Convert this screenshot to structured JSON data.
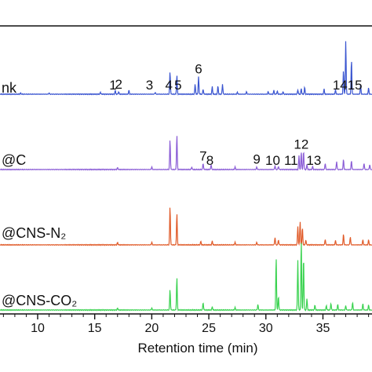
{
  "chart_data": {
    "type": "line",
    "xlabel": "Retention time (min)",
    "ylabel": "",
    "xlim": [
      6.7,
      39.3
    ],
    "x_ticks": [
      10,
      15,
      20,
      25,
      30,
      35
    ],
    "grid": false,
    "series": [
      {
        "name": "nk",
        "color": "#3a55d0",
        "peaks": [
          [
            8.5,
            0.02
          ],
          [
            11,
            0.02
          ],
          [
            15.5,
            0.03
          ],
          [
            16.8,
            0.06
          ],
          [
            17.1,
            0.04
          ],
          [
            18.0,
            0.06
          ],
          [
            20.3,
            0.03
          ],
          [
            21.6,
            0.36
          ],
          [
            22.2,
            0.3
          ],
          [
            23.8,
            0.16
          ],
          [
            24.1,
            0.28
          ],
          [
            24.5,
            0.08
          ],
          [
            25.3,
            0.12
          ],
          [
            25.8,
            0.13
          ],
          [
            26.2,
            0.16
          ],
          [
            27.5,
            0.03
          ],
          [
            28.3,
            0.04
          ],
          [
            30.2,
            0.04
          ],
          [
            30.7,
            0.06
          ],
          [
            31.0,
            0.05
          ],
          [
            31.5,
            0.04
          ],
          [
            32.8,
            0.07
          ],
          [
            33.1,
            0.09
          ],
          [
            33.4,
            0.11
          ],
          [
            35.1,
            0.08
          ],
          [
            36.1,
            0.07
          ],
          [
            36.8,
            0.38
          ],
          [
            37.0,
            0.85
          ],
          [
            37.5,
            0.55
          ],
          [
            38.3,
            0.15
          ],
          [
            39.0,
            0.1
          ]
        ]
      },
      {
        "name": "@C",
        "color": "#8a5cd6",
        "peaks": [
          [
            17.0,
            0.03
          ],
          [
            20.0,
            0.04
          ],
          [
            21.6,
            0.48
          ],
          [
            22.2,
            0.55
          ],
          [
            23.5,
            0.04
          ],
          [
            24.5,
            0.1
          ],
          [
            25.2,
            0.08
          ],
          [
            27.3,
            0.04
          ],
          [
            29.2,
            0.04
          ],
          [
            30.8,
            0.06
          ],
          [
            31.1,
            0.05
          ],
          [
            32.9,
            0.22
          ],
          [
            33.1,
            0.28
          ],
          [
            33.3,
            0.3
          ],
          [
            33.6,
            0.08
          ],
          [
            34.1,
            0.05
          ],
          [
            35.2,
            0.1
          ],
          [
            36.2,
            0.13
          ],
          [
            36.8,
            0.16
          ],
          [
            37.5,
            0.14
          ],
          [
            38.6,
            0.1
          ],
          [
            39.1,
            0.08
          ]
        ]
      },
      {
        "name": "@CNS-N₂",
        "color": "#e05a28",
        "peaks": [
          [
            17.0,
            0.04
          ],
          [
            20.0,
            0.04
          ],
          [
            21.6,
            0.62
          ],
          [
            22.2,
            0.5
          ],
          [
            24.3,
            0.06
          ],
          [
            25.3,
            0.06
          ],
          [
            27.3,
            0.04
          ],
          [
            29.2,
            0.04
          ],
          [
            30.8,
            0.12
          ],
          [
            31.1,
            0.08
          ],
          [
            32.8,
            0.3
          ],
          [
            33.0,
            0.38
          ],
          [
            33.2,
            0.28
          ],
          [
            33.5,
            0.08
          ],
          [
            35.2,
            0.09
          ],
          [
            36.1,
            0.07
          ],
          [
            36.8,
            0.17
          ],
          [
            37.4,
            0.13
          ],
          [
            38.5,
            0.08
          ],
          [
            39.0,
            0.08
          ]
        ]
      },
      {
        "name": "@CNS-CO₂",
        "color": "#39d24f",
        "peaks": [
          [
            17.0,
            0.03
          ],
          [
            20.0,
            0.03
          ],
          [
            21.6,
            0.33
          ],
          [
            22.2,
            0.52
          ],
          [
            24.5,
            0.12
          ],
          [
            25.3,
            0.05
          ],
          [
            27.3,
            0.04
          ],
          [
            29.3,
            0.09
          ],
          [
            30.9,
            0.84
          ],
          [
            31.1,
            0.22
          ],
          [
            32.8,
            0.8
          ],
          [
            33.1,
            1.12
          ],
          [
            33.3,
            0.86
          ],
          [
            33.6,
            0.18
          ],
          [
            34.3,
            0.08
          ],
          [
            35.3,
            0.07
          ],
          [
            35.7,
            0.11
          ],
          [
            36.3,
            0.09
          ],
          [
            37.0,
            0.07
          ],
          [
            37.6,
            0.12
          ],
          [
            38.5,
            0.1
          ],
          [
            39.0,
            0.08
          ]
        ]
      }
    ],
    "annotations": [
      {
        "text": "1",
        "series": 0,
        "x": 16.6
      },
      {
        "text": "2",
        "series": 0,
        "x": 17.1
      },
      {
        "text": "3",
        "series": 0,
        "x": 19.8
      },
      {
        "text": "4",
        "series": 0,
        "x": 21.5
      },
      {
        "text": "5",
        "series": 0,
        "x": 22.3
      },
      {
        "text": "6",
        "series": 0,
        "x": 24.1
      },
      {
        "text": "14",
        "series": 0,
        "x": 36.5
      },
      {
        "text": "15",
        "series": 0,
        "x": 37.8
      },
      {
        "text": "7",
        "series": 1,
        "x": 24.5
      },
      {
        "text": "8",
        "series": 1,
        "x": 25.1
      },
      {
        "text": "9",
        "series": 1,
        "x": 29.2
      },
      {
        "text": "10",
        "series": 1,
        "x": 30.6
      },
      {
        "text": "11",
        "series": 1,
        "x": 32.2
      },
      {
        "text": "12",
        "series": 1,
        "x": 33.1
      },
      {
        "text": "13",
        "series": 1,
        "x": 34.2
      }
    ]
  }
}
